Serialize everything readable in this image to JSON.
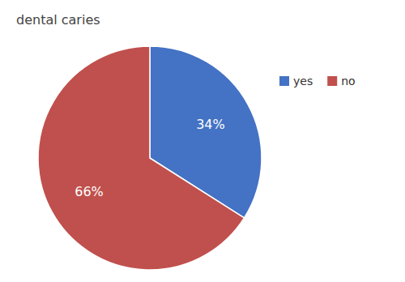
{
  "chart_data": {
    "type": "pie",
    "title": "dental caries",
    "categories": [
      "yes",
      "no"
    ],
    "values": [
      34,
      66
    ],
    "value_labels": [
      "34%",
      "66%"
    ],
    "data_labels": true,
    "colors": [
      "#4472C4",
      "#C0504D"
    ],
    "legend": "upper right"
  }
}
